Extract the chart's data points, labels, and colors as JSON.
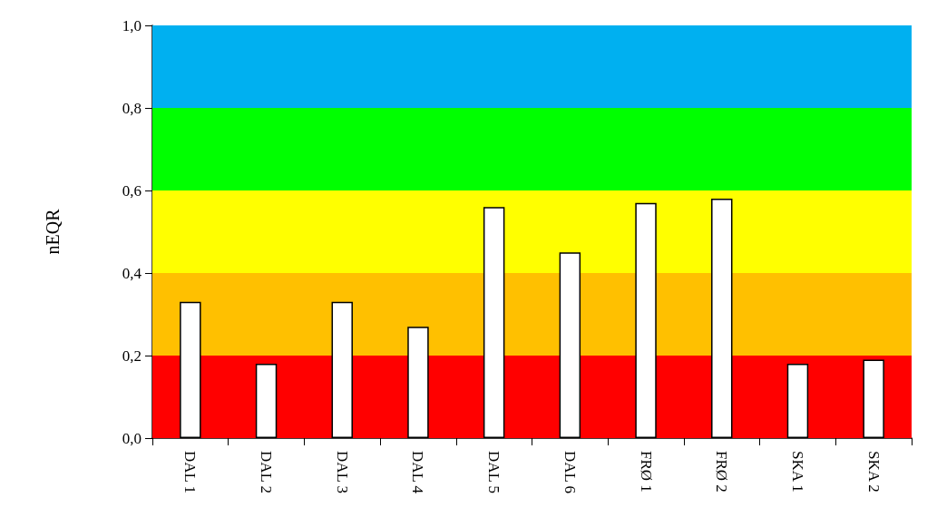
{
  "chart_data": {
    "type": "bar",
    "ylabel": "nEQR",
    "categories": [
      "DAL 1",
      "DAL 2",
      "DAL 3",
      "DAL 4",
      "DAL 5",
      "DAL 6",
      "FRØ 1",
      "FRØ 2",
      "SKA 1",
      "SKA 2"
    ],
    "values": [
      0.33,
      0.18,
      0.33,
      0.27,
      0.56,
      0.45,
      0.57,
      0.58,
      0.18,
      0.19
    ],
    "color": "#ffffff",
    "ylim": [
      0,
      1
    ],
    "yticks": [
      {
        "value": 0,
        "label": "0,0"
      },
      {
        "value": 0.2,
        "label": "0,2"
      },
      {
        "value": 0.4,
        "label": "0,4"
      },
      {
        "value": 0.6,
        "label": "0,6"
      },
      {
        "value": 0.8,
        "label": "0,8"
      },
      {
        "value": 1,
        "label": "1,0"
      }
    ],
    "bands": [
      {
        "axis": "y",
        "from": 0,
        "to": 0.2,
        "color": "#ff0000"
      },
      {
        "axis": "y",
        "from": 0.2,
        "to": 0.4,
        "color": "#ffc000"
      },
      {
        "axis": "y",
        "from": 0.4,
        "to": 0.6,
        "color": "#ffff00"
      },
      {
        "axis": "y",
        "from": 0.6,
        "to": 0.8,
        "color": "#00ff00"
      },
      {
        "axis": "y",
        "from": 0.8,
        "to": 1,
        "color": "#00b0f0"
      }
    ],
    "grid": false
  }
}
